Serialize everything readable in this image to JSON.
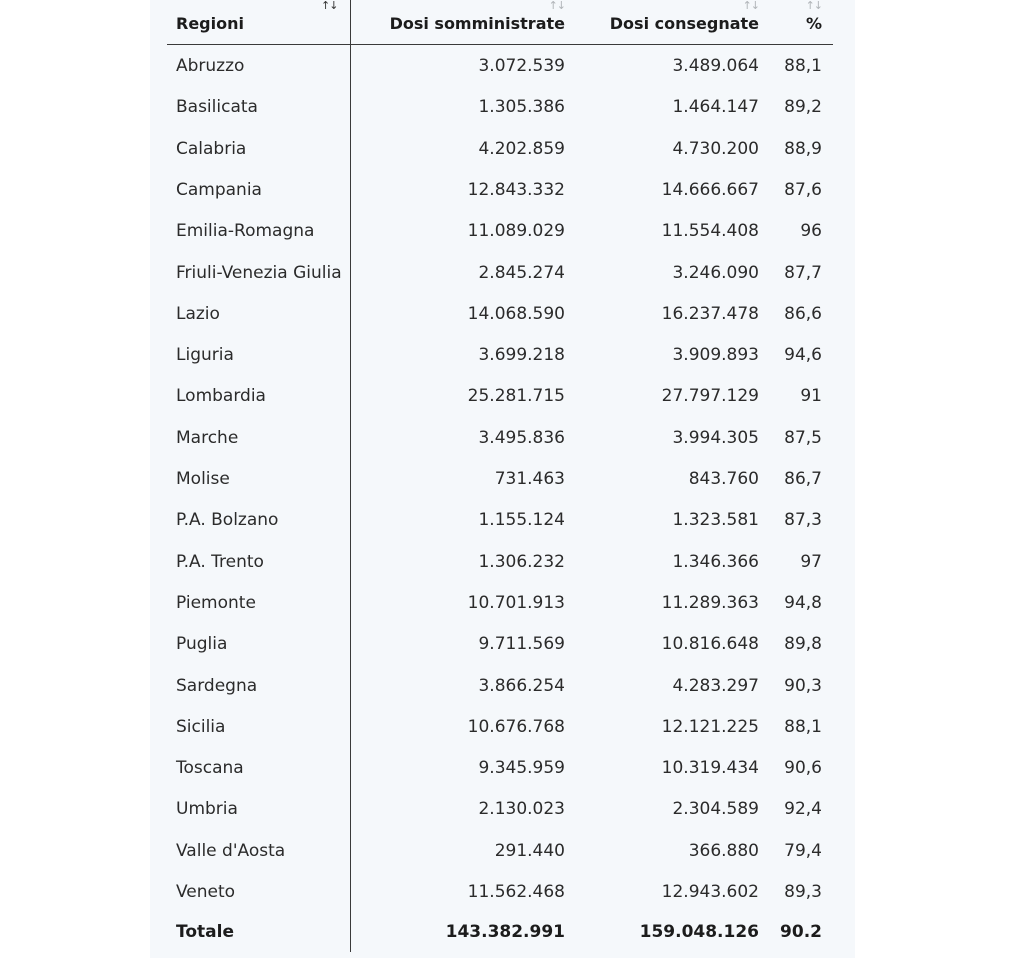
{
  "table": {
    "headers": {
      "region": "Regioni",
      "administered": "Dosi somministrate",
      "delivered": "Dosi consegnate",
      "percent": "%"
    },
    "sort_icons": {
      "region": "↑↓",
      "administered": "↑↓",
      "delivered": "↑↓",
      "percent": "↑↓"
    },
    "rows": [
      {
        "region": "Abruzzo",
        "administered": "3.072.539",
        "delivered": "3.489.064",
        "percent": "88,1"
      },
      {
        "region": "Basilicata",
        "administered": "1.305.386",
        "delivered": "1.464.147",
        "percent": "89,2"
      },
      {
        "region": "Calabria",
        "administered": "4.202.859",
        "delivered": "4.730.200",
        "percent": "88,9"
      },
      {
        "region": "Campania",
        "administered": "12.843.332",
        "delivered": "14.666.667",
        "percent": "87,6"
      },
      {
        "region": "Emilia-Romagna",
        "administered": "11.089.029",
        "delivered": "11.554.408",
        "percent": "96"
      },
      {
        "region": "Friuli-Venezia Giulia",
        "administered": "2.845.274",
        "delivered": "3.246.090",
        "percent": "87,7"
      },
      {
        "region": "Lazio",
        "administered": "14.068.590",
        "delivered": "16.237.478",
        "percent": "86,6"
      },
      {
        "region": "Liguria",
        "administered": "3.699.218",
        "delivered": "3.909.893",
        "percent": "94,6"
      },
      {
        "region": "Lombardia",
        "administered": "25.281.715",
        "delivered": "27.797.129",
        "percent": "91"
      },
      {
        "region": "Marche",
        "administered": "3.495.836",
        "delivered": "3.994.305",
        "percent": "87,5"
      },
      {
        "region": "Molise",
        "administered": "731.463",
        "delivered": "843.760",
        "percent": "86,7"
      },
      {
        "region": "P.A. Bolzano",
        "administered": "1.155.124",
        "delivered": "1.323.581",
        "percent": "87,3"
      },
      {
        "region": "P.A. Trento",
        "administered": "1.306.232",
        "delivered": "1.346.366",
        "percent": "97"
      },
      {
        "region": "Piemonte",
        "administered": "10.701.913",
        "delivered": "11.289.363",
        "percent": "94,8"
      },
      {
        "region": "Puglia",
        "administered": "9.711.569",
        "delivered": "10.816.648",
        "percent": "89,8"
      },
      {
        "region": "Sardegna",
        "administered": "3.866.254",
        "delivered": "4.283.297",
        "percent": "90,3"
      },
      {
        "region": "Sicilia",
        "administered": "10.676.768",
        "delivered": "12.121.225",
        "percent": "88,1"
      },
      {
        "region": "Toscana",
        "administered": "9.345.959",
        "delivered": "10.319.434",
        "percent": "90,6"
      },
      {
        "region": "Umbria",
        "administered": "2.130.023",
        "delivered": "2.304.589",
        "percent": "92,4"
      },
      {
        "region": "Valle d'Aosta",
        "administered": "291.440",
        "delivered": "366.880",
        "percent": "79,4"
      },
      {
        "region": "Veneto",
        "administered": "11.562.468",
        "delivered": "12.943.602",
        "percent": "89,3"
      }
    ],
    "total": {
      "region": "Totale",
      "administered": "143.382.991",
      "delivered": "159.048.126",
      "percent": "90.2"
    }
  }
}
